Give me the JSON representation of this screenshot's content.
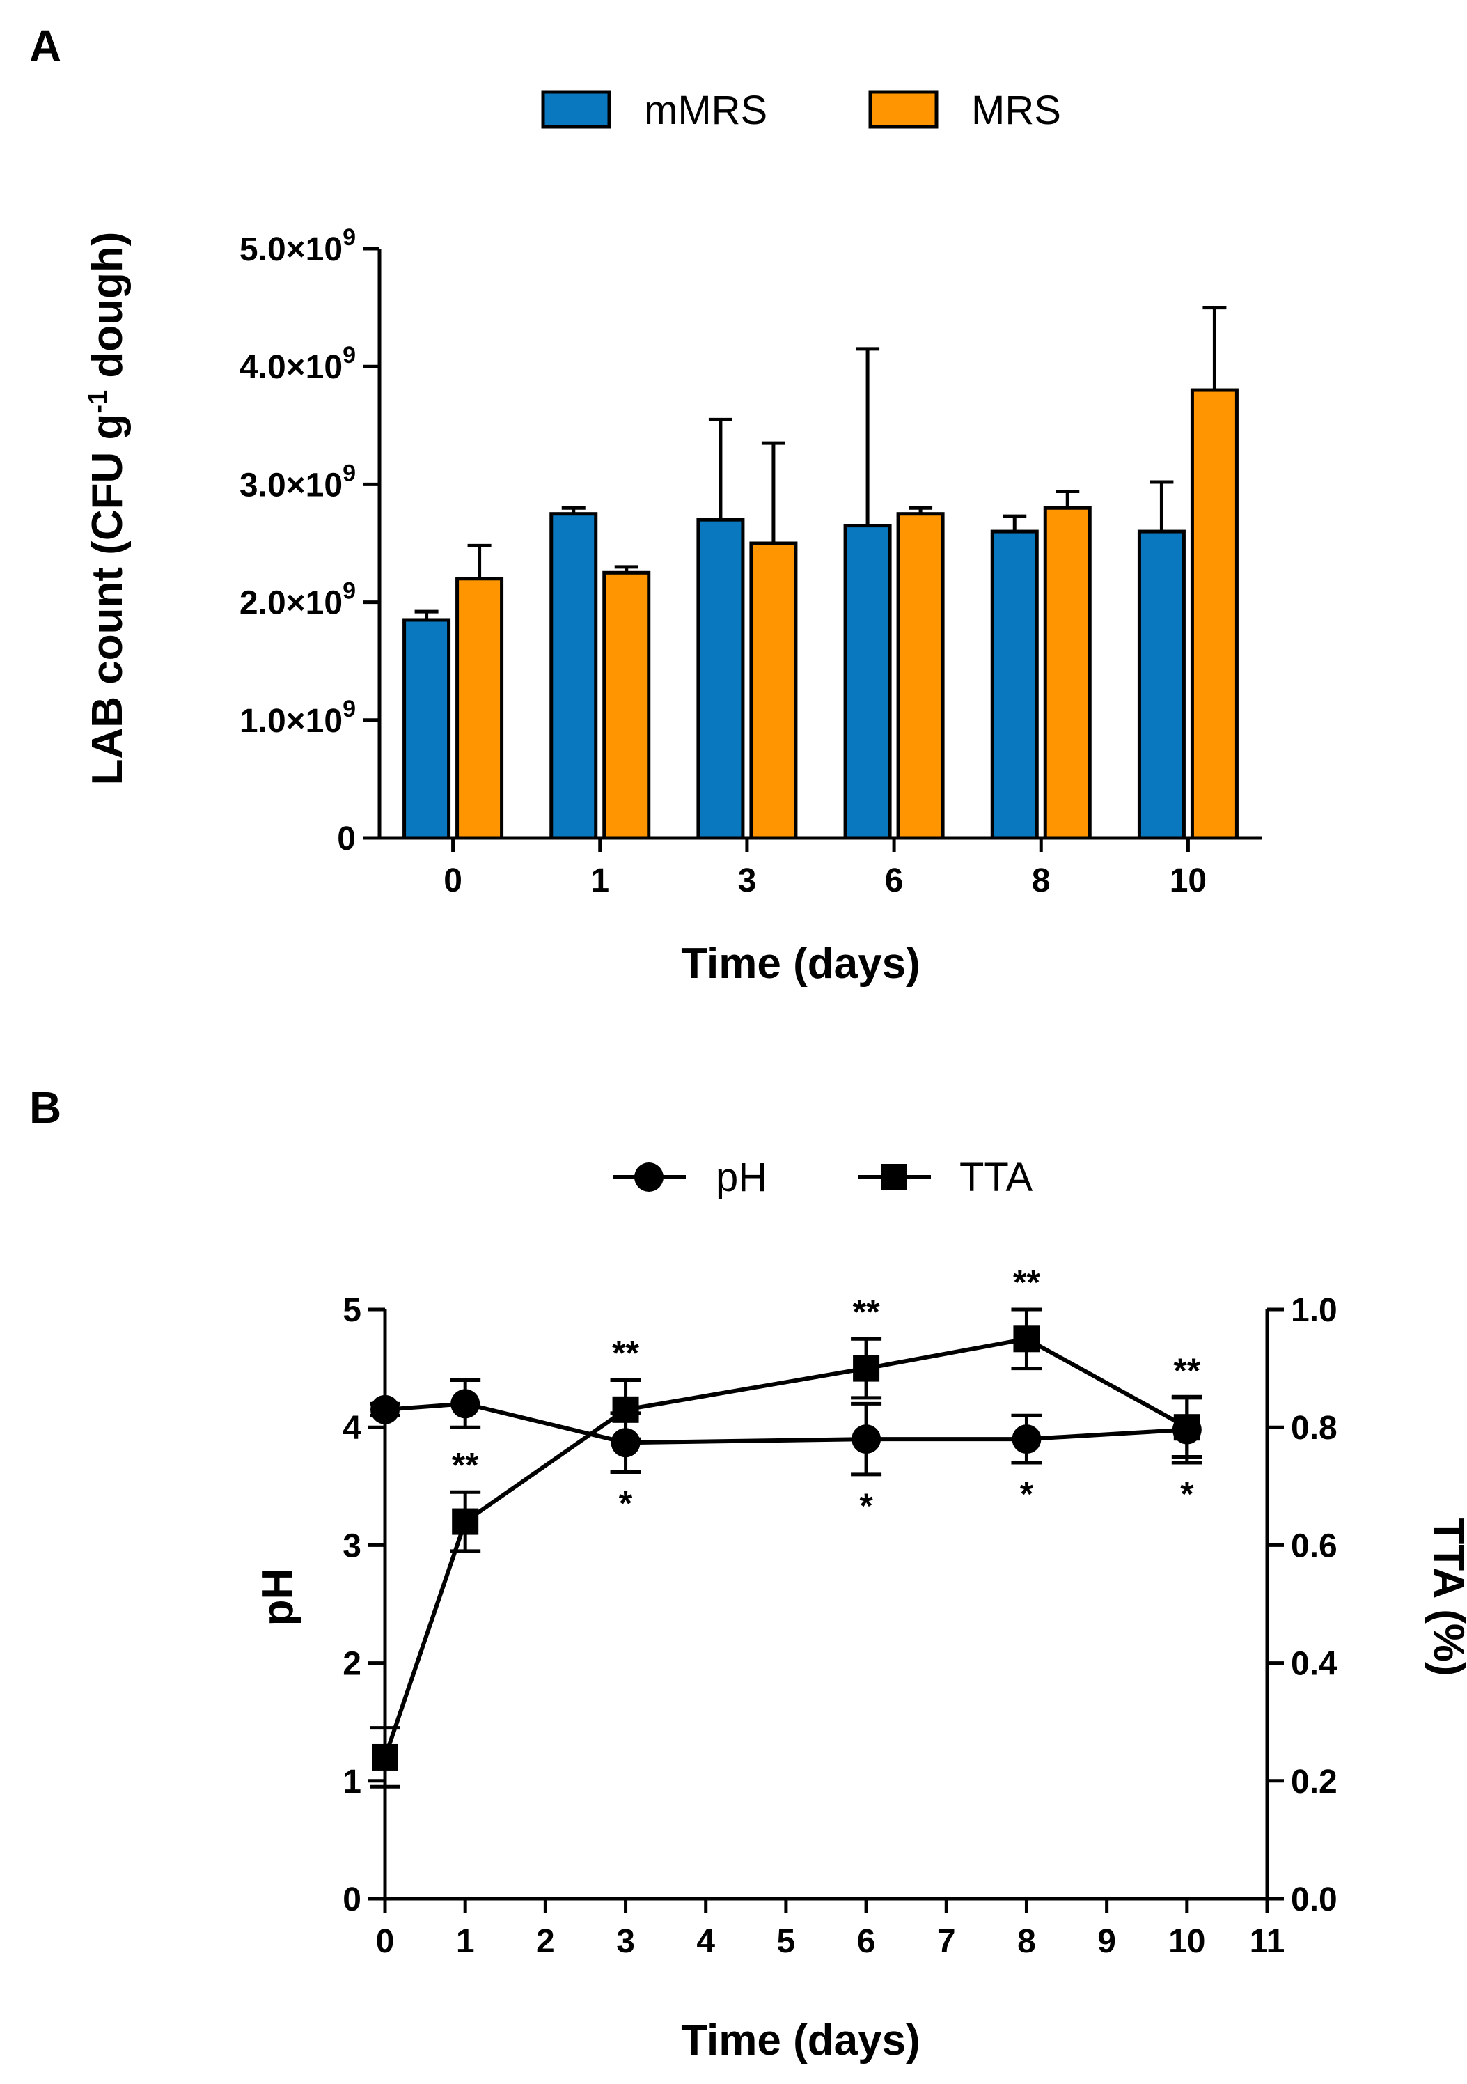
{
  "chart_data": [
    {
      "panel": "A",
      "type": "bar",
      "categories": [
        "0",
        "1",
        "3",
        "6",
        "8",
        "10"
      ],
      "series": [
        {
          "name": "mMRS",
          "color": "#0a78be",
          "values": [
            1.85,
            2.75,
            2.7,
            2.65,
            2.6,
            2.6
          ],
          "errors": [
            0.07,
            0.05,
            0.85,
            1.5,
            0.13,
            0.42
          ]
        },
        {
          "name": "MRS",
          "color": "#ff9500",
          "values": [
            2.2,
            2.25,
            2.5,
            2.75,
            2.8,
            3.8
          ],
          "errors": [
            0.28,
            0.05,
            0.85,
            0.05,
            0.14,
            0.7
          ]
        }
      ],
      "value_scale": "x10^9",
      "ylim": [
        0,
        5
      ],
      "yticks": [
        {
          "value": 0,
          "label": "0"
        },
        {
          "value": 1,
          "mantissa": "1.0×10",
          "exponent": "9"
        },
        {
          "value": 2,
          "mantissa": "2.0×10",
          "exponent": "9"
        },
        {
          "value": 3,
          "mantissa": "3.0×10",
          "exponent": "9"
        },
        {
          "value": 4,
          "mantissa": "4.0×10",
          "exponent": "9"
        },
        {
          "value": 5,
          "mantissa": "5.0×10",
          "exponent": "9"
        }
      ],
      "xlabel": "Time (days)",
      "ylabel": {
        "before": "LAB count (CFU g",
        "superscript": "-1",
        "after": " dough)"
      }
    },
    {
      "panel": "B",
      "type": "line",
      "xlim": [
        0,
        11
      ],
      "xticks": [
        0,
        1,
        2,
        3,
        4,
        5,
        6,
        7,
        8,
        9,
        10,
        11
      ],
      "xlabel": "Time (days)",
      "y_left": {
        "label": "pH",
        "lim": [
          0,
          5
        ],
        "ticks": [
          0,
          1,
          2,
          3,
          4,
          5
        ]
      },
      "y_right": {
        "label": "TTA (%)",
        "lim": [
          0,
          1.0
        ],
        "ticks": [
          "0.0",
          "0.2",
          "0.4",
          "0.6",
          "0.8",
          "1.0"
        ]
      },
      "series": [
        {
          "name": "pH",
          "marker": "circle",
          "axis": "left",
          "x": [
            0,
            1,
            3,
            6,
            8,
            10
          ],
          "y": [
            4.15,
            4.2,
            3.87,
            3.9,
            3.9,
            3.98
          ],
          "errors": [
            0.05,
            0.2,
            0.25,
            0.3,
            0.2,
            0.28
          ],
          "annotations": [
            "",
            "",
            "*",
            "*",
            "*",
            "*"
          ]
        },
        {
          "name": "TTA",
          "marker": "square",
          "axis": "right",
          "x": [
            0,
            1,
            3,
            6,
            8,
            10
          ],
          "y": [
            0.24,
            0.64,
            0.83,
            0.9,
            0.95,
            0.8
          ],
          "errors": [
            0.05,
            0.05,
            0.05,
            0.05,
            0.05,
            0.05
          ],
          "annotations": [
            "",
            "**",
            "**",
            "**",
            "**",
            "**"
          ]
        }
      ]
    }
  ]
}
